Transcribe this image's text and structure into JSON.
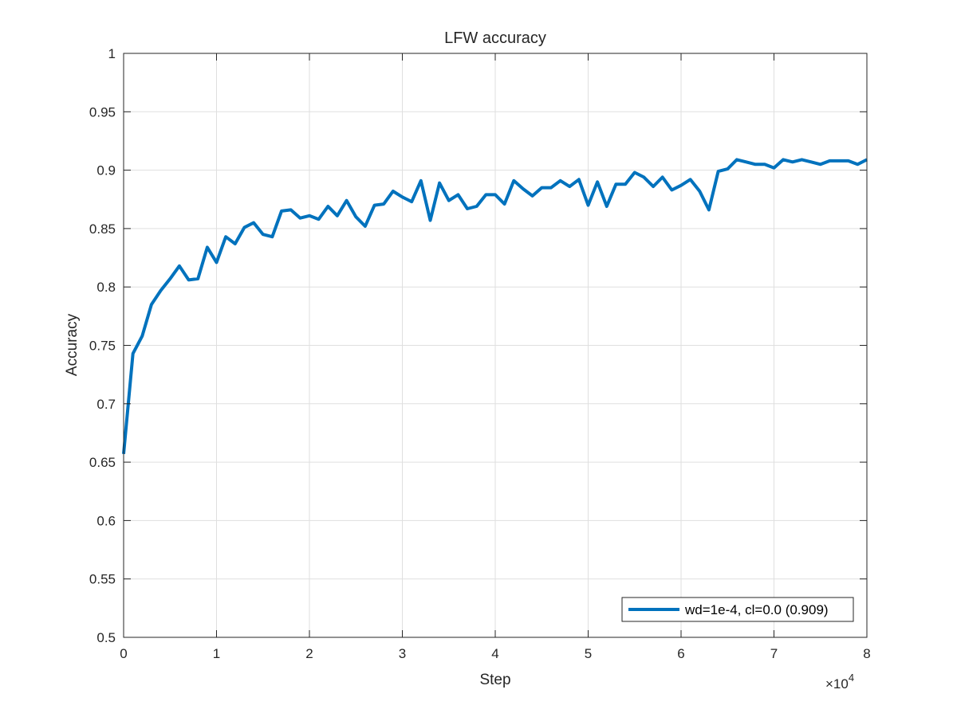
{
  "chart_data": {
    "type": "line",
    "title": "LFW accuracy",
    "xlabel": "Step",
    "ylabel": "Accuracy",
    "x_exponent_label": "×10",
    "x_exponent_power": "4",
    "xlim": [
      0,
      80000
    ],
    "ylim": [
      0.5,
      1
    ],
    "xticks": [
      0,
      10000,
      20000,
      30000,
      40000,
      50000,
      60000,
      70000,
      80000
    ],
    "xtick_labels": [
      "0",
      "1",
      "2",
      "3",
      "4",
      "5",
      "6",
      "7",
      "8"
    ],
    "yticks": [
      0.5,
      0.55,
      0.6,
      0.65,
      0.7,
      0.75,
      0.8,
      0.85,
      0.9,
      0.95,
      1
    ],
    "ytick_labels": [
      "0.5",
      "0.55",
      "0.6",
      "0.65",
      "0.7",
      "0.75",
      "0.8",
      "0.85",
      "0.9",
      "0.95",
      "1"
    ],
    "grid": true,
    "legend_position": "bottom-right",
    "series": [
      {
        "name": "wd=1e-4, cl=0.0 (0.909)",
        "color": "#0072bd",
        "x": [
          0,
          1000,
          2000,
          3000,
          4000,
          5000,
          6000,
          7000,
          8000,
          9000,
          10000,
          11000,
          12000,
          13000,
          14000,
          15000,
          16000,
          17000,
          18000,
          19000,
          20000,
          21000,
          22000,
          23000,
          24000,
          25000,
          26000,
          27000,
          28000,
          29000,
          30000,
          31000,
          32000,
          33000,
          34000,
          35000,
          36000,
          37000,
          38000,
          39000,
          40000,
          41000,
          42000,
          43000,
          44000,
          45000,
          46000,
          47000,
          48000,
          49000,
          50000,
          51000,
          52000,
          53000,
          54000,
          55000,
          56000,
          57000,
          58000,
          59000,
          60000,
          61000,
          62000,
          63000,
          64000,
          65000,
          66000,
          67000,
          68000,
          69000,
          70000,
          71000,
          72000,
          73000,
          74000,
          75000,
          76000,
          77000,
          78000,
          79000,
          80000
        ],
        "y": [
          0.657,
          0.743,
          0.758,
          0.785,
          0.797,
          0.807,
          0.818,
          0.806,
          0.807,
          0.834,
          0.821,
          0.843,
          0.837,
          0.851,
          0.855,
          0.845,
          0.843,
          0.865,
          0.866,
          0.859,
          0.861,
          0.858,
          0.869,
          0.861,
          0.874,
          0.86,
          0.852,
          0.87,
          0.871,
          0.882,
          0.877,
          0.873,
          0.891,
          0.857,
          0.889,
          0.874,
          0.879,
          0.867,
          0.869,
          0.879,
          0.879,
          0.871,
          0.891,
          0.884,
          0.878,
          0.885,
          0.885,
          0.891,
          0.886,
          0.892,
          0.87,
          0.89,
          0.869,
          0.888,
          0.888,
          0.898,
          0.894,
          0.886,
          0.894,
          0.883,
          0.887,
          0.892,
          0.882,
          0.866,
          0.899,
          0.901,
          0.909,
          0.907,
          0.905,
          0.905,
          0.902,
          0.909,
          0.907,
          0.909,
          0.907,
          0.905,
          0.908,
          0.908,
          0.908,
          0.905,
          0.909
        ]
      }
    ]
  }
}
